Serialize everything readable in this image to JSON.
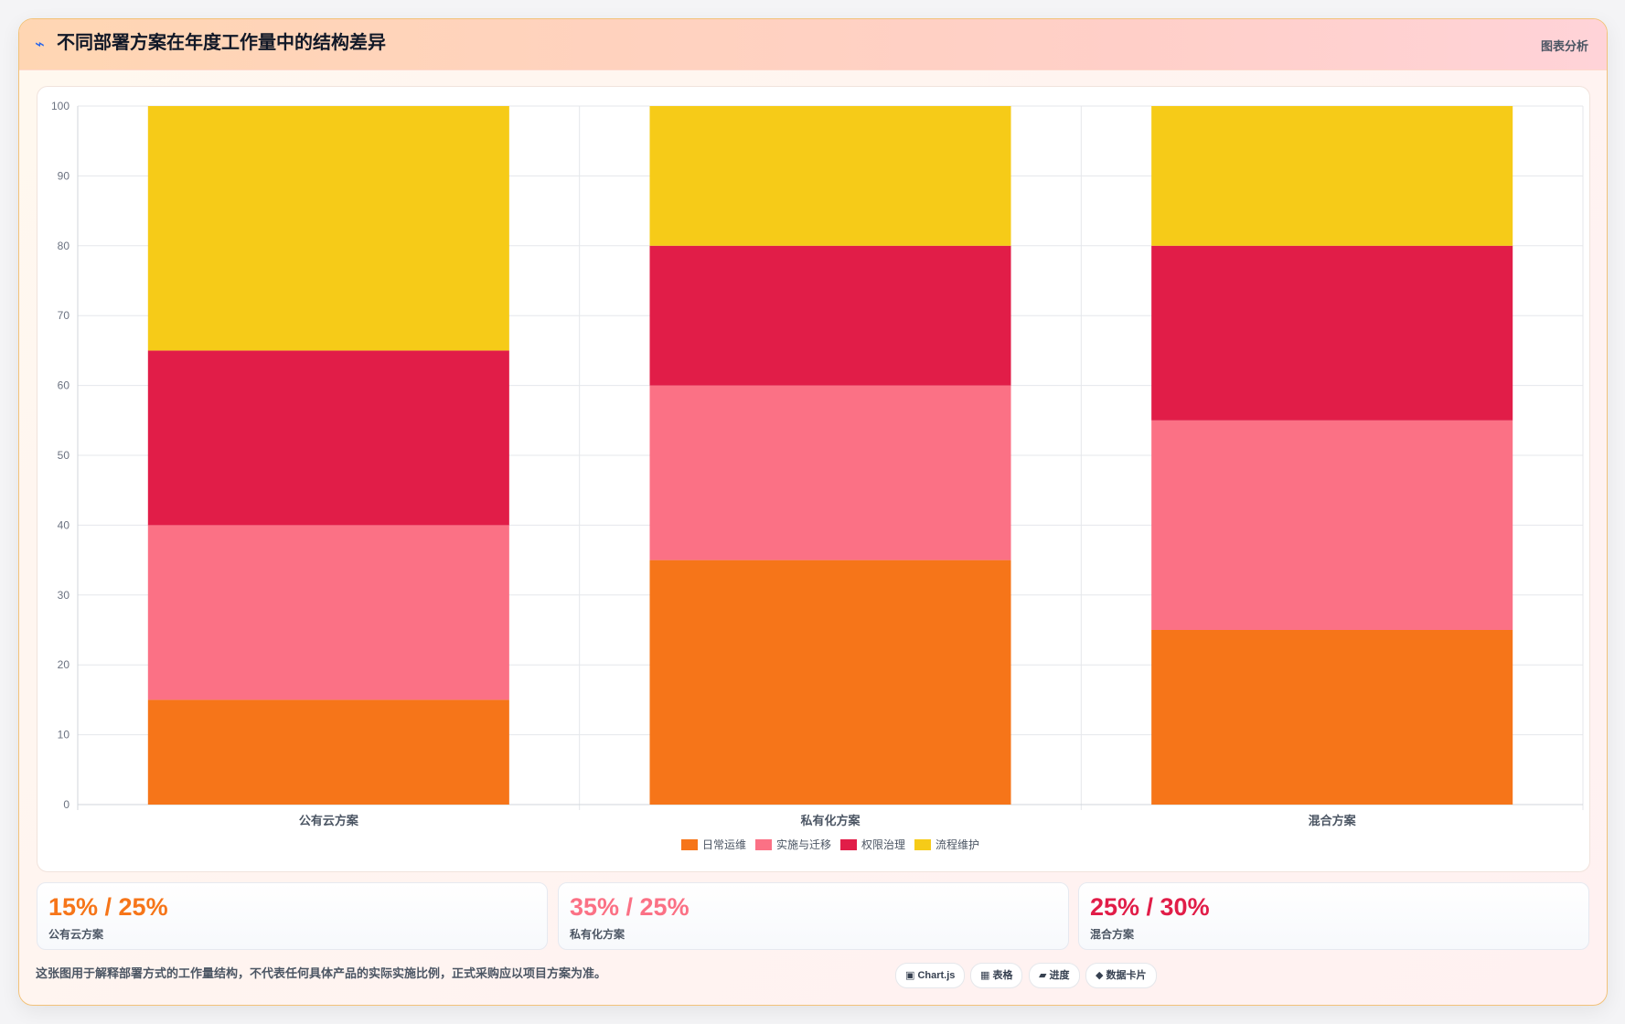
{
  "header": {
    "icon": "⌁",
    "icon_name": "wave-icon",
    "title": "不同部署方案在年度工作量中的结构差异",
    "tag": "图表分析"
  },
  "chart_data": {
    "type": "bar",
    "stacked": true,
    "categories": [
      "公有云方案",
      "私有化方案",
      "混合方案"
    ],
    "series": [
      {
        "name": "日常运维",
        "color": "#f67519",
        "values": [
          15,
          35,
          25
        ]
      },
      {
        "name": "实施与迁移",
        "color": "#fb7185",
        "values": [
          25,
          25,
          30
        ]
      },
      {
        "name": "权限治理",
        "color": "#e11d48",
        "values": [
          25,
          20,
          25
        ]
      },
      {
        "name": "流程维护",
        "color": "#f6cb18",
        "values": [
          35,
          20,
          20
        ]
      }
    ],
    "ylim": [
      0,
      100
    ],
    "yticks": [
      0,
      10,
      20,
      30,
      40,
      50,
      60,
      70,
      80,
      90,
      100
    ],
    "grid": true,
    "legend_position": "bottom"
  },
  "kpis": [
    {
      "value": "15% / 25%",
      "label": "公有云方案",
      "color": "#f67519"
    },
    {
      "value": "35% / 25%",
      "label": "私有化方案",
      "color": "#fb7185"
    },
    {
      "value": "25% / 30%",
      "label": "混合方案",
      "color": "#e11d48"
    }
  ],
  "footnote": "这张图用于解释部署方式的工作量结构，不代表任何具体产品的实际实施比例，正式采购应以项目方案为准。",
  "chips": [
    {
      "label": "▣ Chart.js",
      "icon": "chart-icon"
    },
    {
      "label": "▦ 表格",
      "icon": "table-icon"
    },
    {
      "label": "▰ 进度",
      "icon": "progress-icon"
    },
    {
      "label": "◆ 数据卡片",
      "icon": "card-icon"
    }
  ]
}
